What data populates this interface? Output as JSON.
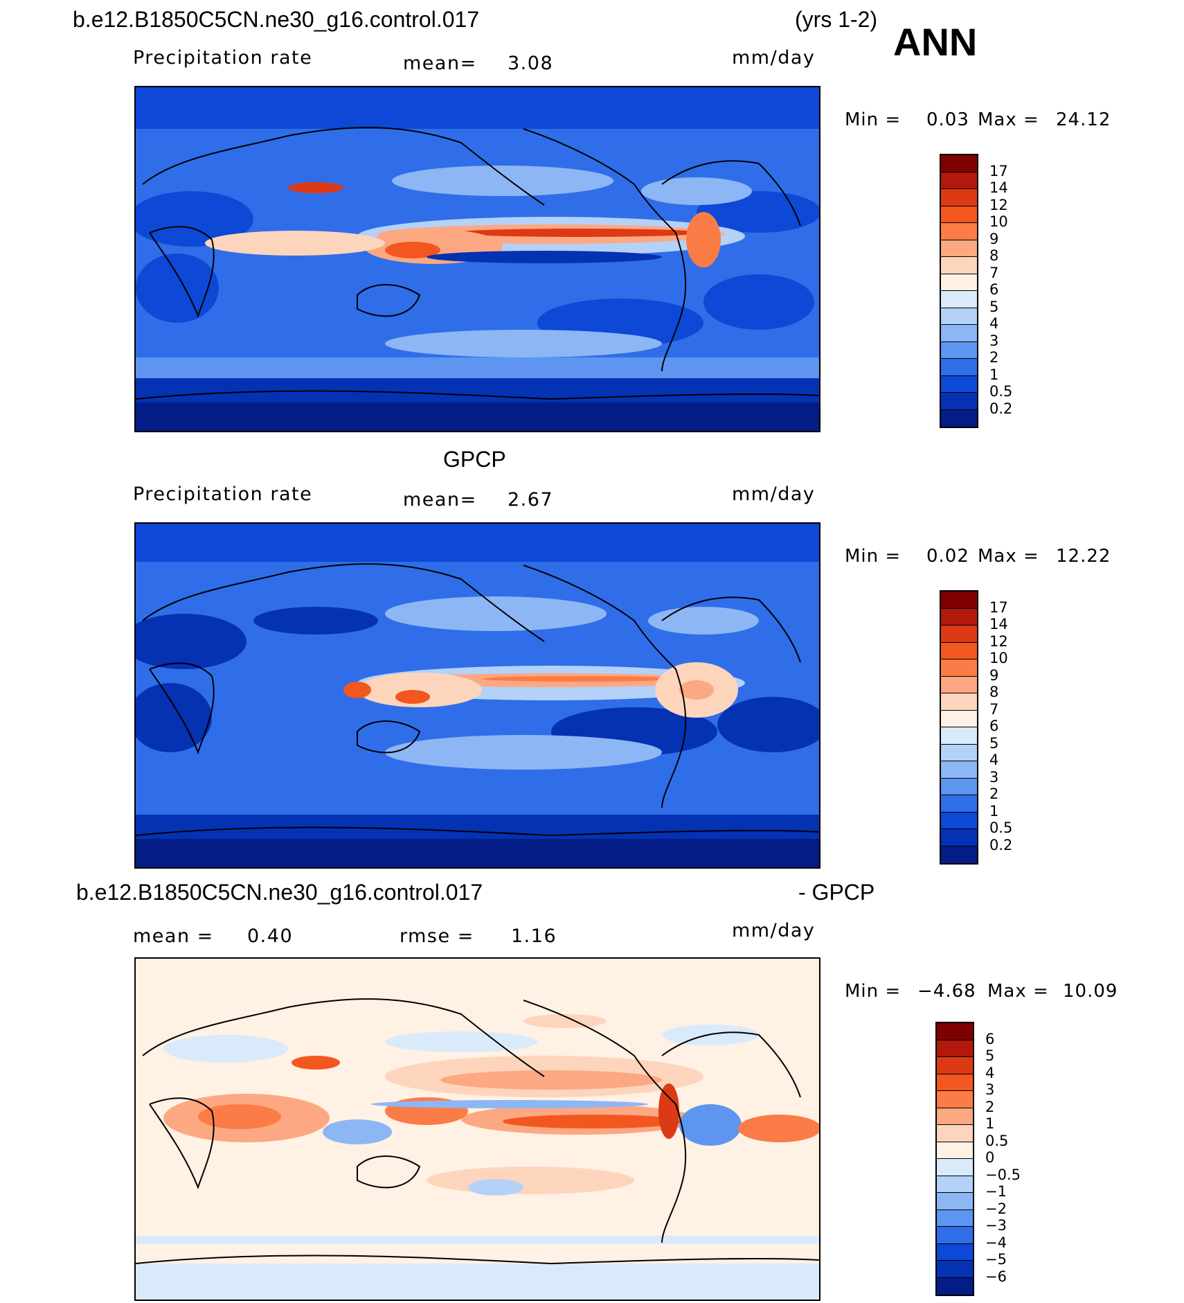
{
  "header": {
    "case_title": "b.e12.B1850C5CN.ne30_g16.control.017",
    "years": "(yrs 1-2)",
    "season": "ANN"
  },
  "panels": [
    {
      "title": "",
      "variable": "Precipitation rate",
      "mean_label": "mean=",
      "mean_value": "3.08",
      "units": "mm/day",
      "min_label": "Min =",
      "min_value": "0.03",
      "max_label": "Max =",
      "max_value": "24.12",
      "colorbar": {
        "colors": [
          "#7f0000",
          "#b2180b",
          "#dc3a14",
          "#f2571f",
          "#fb7c46",
          "#fca883",
          "#fdd5bc",
          "#fff1e4",
          "#d9eafb",
          "#b4d1f8",
          "#8db6f5",
          "#5d95f1",
          "#2f6ee8",
          "#0e48d6",
          "#0531b3",
          "#041c85"
        ],
        "labels": [
          "17",
          "14",
          "12",
          "10",
          "9",
          "8",
          "7",
          "6",
          "5",
          "4",
          "3",
          "2",
          "1",
          "0.5",
          "0.2"
        ]
      }
    },
    {
      "title": "GPCP",
      "variable": "Precipitation rate",
      "mean_label": "mean=",
      "mean_value": "2.67",
      "units": "mm/day",
      "min_label": "Min =",
      "min_value": "0.02",
      "max_label": "Max =",
      "max_value": "12.22",
      "colorbar": {
        "colors": [
          "#7f0000",
          "#b2180b",
          "#dc3a14",
          "#f2571f",
          "#fb7c46",
          "#fca883",
          "#fdd5bc",
          "#fff1e4",
          "#d9eafb",
          "#b4d1f8",
          "#8db6f5",
          "#5d95f1",
          "#2f6ee8",
          "#0e48d6",
          "#0531b3",
          "#041c85"
        ],
        "labels": [
          "17",
          "14",
          "12",
          "10",
          "9",
          "8",
          "7",
          "6",
          "5",
          "4",
          "3",
          "2",
          "1",
          "0.5",
          "0.2"
        ]
      }
    },
    {
      "title": "b.e12.B1850C5CN.ne30_g16.control.017",
      "title_right": "- GPCP",
      "mean_label": "mean =",
      "mean_value": "0.40",
      "rmse_label": "rmse =",
      "rmse_value": "1.16",
      "units": "mm/day",
      "min_label": "Min =",
      "min_value": "−4.68",
      "max_label": "Max =",
      "max_value": "10.09",
      "colorbar": {
        "colors": [
          "#7f0000",
          "#b2180b",
          "#dc3a14",
          "#f2571f",
          "#fb7c46",
          "#fca883",
          "#fdd5bc",
          "#fff1e4",
          "#d9eafb",
          "#b4d1f8",
          "#8db6f5",
          "#5d95f1",
          "#2f6ee8",
          "#0e48d6",
          "#0531b3",
          "#041c85"
        ],
        "labels": [
          "6",
          "5",
          "4",
          "3",
          "2",
          "1",
          "0.5",
          "0",
          "−0.5",
          "−1",
          "−2",
          "−3",
          "−4",
          "−5",
          "−6"
        ]
      }
    }
  ]
}
